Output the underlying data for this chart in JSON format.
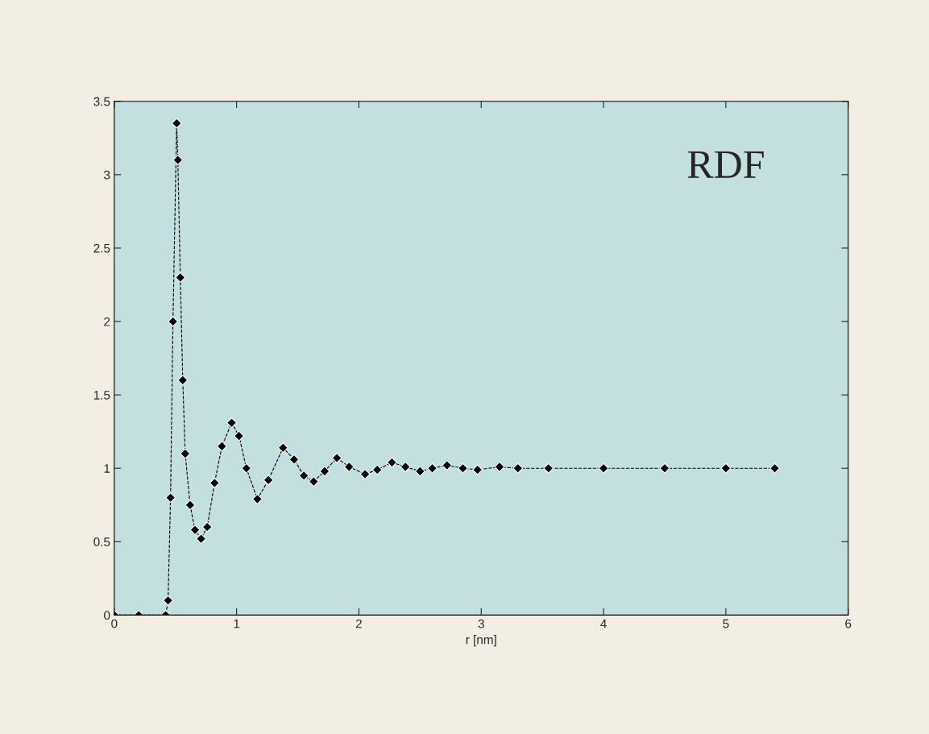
{
  "chart_data": {
    "type": "line",
    "title": "RDF",
    "xlabel": "r [nm]",
    "x": [
      0.0,
      0.2,
      0.42,
      0.44,
      0.46,
      0.48,
      0.51,
      0.52,
      0.54,
      0.56,
      0.58,
      0.62,
      0.66,
      0.71,
      0.76,
      0.82,
      0.88,
      0.96,
      1.02,
      1.08,
      1.17,
      1.26,
      1.38,
      1.47,
      1.55,
      1.63,
      1.72,
      1.82,
      1.92,
      2.05,
      2.15,
      2.27,
      2.38,
      2.5,
      2.6,
      2.72,
      2.85,
      2.97,
      3.15,
      3.3,
      3.55,
      4.0,
      4.5,
      5.0,
      5.4
    ],
    "series": [
      {
        "color": "#000000",
        "values": [
          0,
          0,
          0,
          0.1,
          0.8,
          2.0,
          3.35,
          3.1,
          2.3,
          1.6,
          1.1,
          0.75,
          0.58,
          0.52,
          0.6,
          0.9,
          1.15,
          1.31,
          1.22,
          1.0,
          0.79,
          0.92,
          1.14,
          1.06,
          0.95,
          0.91,
          0.98,
          1.07,
          1.01,
          0.96,
          0.99,
          1.04,
          1.01,
          0.98,
          1.0,
          1.02,
          1.0,
          0.99,
          1.01,
          1.0,
          1.0,
          1.0,
          1.0,
          1.0,
          1.0
        ]
      }
    ],
    "xlim": [
      0,
      6
    ],
    "xticks": [
      0,
      1,
      2,
      3,
      4,
      5,
      6
    ],
    "ylim": [
      0,
      3.5
    ],
    "yticks": [
      0,
      0.5,
      1,
      1.5,
      2,
      2.5,
      3,
      3.5
    ],
    "grid": false,
    "legend": false,
    "marker": "diamond",
    "line_style": "dashed"
  }
}
